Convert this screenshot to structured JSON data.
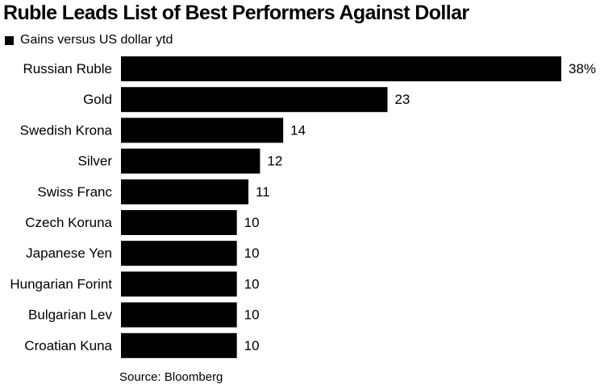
{
  "chart_data": {
    "type": "bar",
    "orientation": "horizontal",
    "title": "Ruble Leads List of Best Performers Against Dollar",
    "legend": {
      "position": "top-left",
      "entries": [
        "Gains versus US dollar ytd"
      ]
    },
    "series": [
      {
        "name": "Gains versus US dollar ytd",
        "color": "#000000",
        "values": [
          38,
          23,
          14,
          12,
          11,
          10,
          10,
          10,
          10,
          10
        ]
      }
    ],
    "categories": [
      "Russian Ruble",
      "Gold",
      "Swedish Krona",
      "Silver",
      "Swiss Franc",
      "Czech Koruna",
      "Japanese Yen",
      "Hungarian Forint",
      "Bulgarian Lev",
      "Croatian Kuna"
    ],
    "data_labels": [
      "38%",
      "23",
      "14",
      "12",
      "11",
      "10",
      "10",
      "10",
      "10",
      "10"
    ],
    "xlim": [
      0,
      38
    ],
    "grid": false,
    "source": "Source: Bloomberg"
  }
}
